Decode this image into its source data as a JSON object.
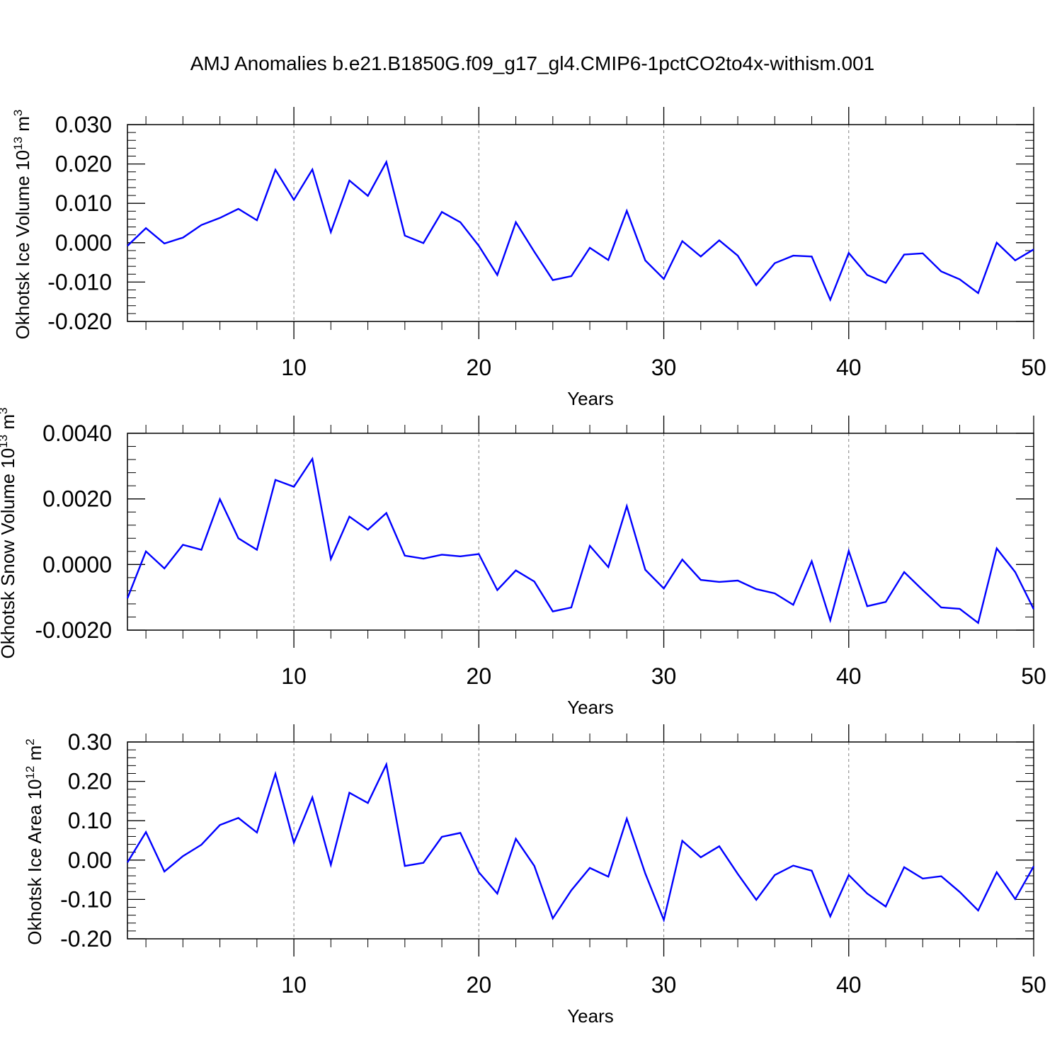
{
  "title": "AMJ Anomalies b.e21.B1850G.f09_g17_gl4.CMIP6-1pctCO2to4x-withism.001",
  "colors": {
    "series": "#0000ff",
    "axis": "#000000",
    "grid": "#808080"
  },
  "chart_data": [
    {
      "type": "line",
      "xlabel": "Years",
      "ylabel": {
        "prefix": "Okhotsk Ice Volume 10",
        "exp": "13",
        "unit": " m",
        "unit_exp": "3"
      },
      "xlim": [
        1,
        50
      ],
      "ylim": [
        -0.02,
        0.03
      ],
      "xticks": [
        "10",
        "20",
        "30",
        "40",
        "50"
      ],
      "yticks": [
        "0.030",
        "0.020",
        "0.010",
        "0.000",
        "-0.010",
        "-0.020"
      ],
      "grid": "dashed vertical at major x ticks",
      "x": [
        1,
        2,
        3,
        4,
        5,
        6,
        7,
        8,
        9,
        10,
        11,
        12,
        13,
        14,
        15,
        16,
        17,
        18,
        19,
        20,
        21,
        22,
        23,
        24,
        25,
        26,
        27,
        28,
        29,
        30,
        31,
        32,
        33,
        34,
        35,
        36,
        37,
        38,
        39,
        40,
        41,
        42,
        43,
        44,
        45,
        46,
        47,
        48,
        49,
        50
      ],
      "values": [
        -0.0008,
        0.0037,
        -0.0002,
        0.0013,
        0.0045,
        0.0063,
        0.0086,
        0.0057,
        0.0185,
        0.0109,
        0.0186,
        0.0027,
        0.0158,
        0.0119,
        0.0205,
        0.0018,
        -0.0001,
        0.0078,
        0.0052,
        -0.0008,
        -0.0082,
        0.0052,
        -0.0023,
        -0.0095,
        -0.0085,
        -0.0013,
        -0.0044,
        0.0081,
        -0.0045,
        -0.0092,
        0.0004,
        -0.0035,
        0.0006,
        -0.0033,
        -0.0108,
        -0.0052,
        -0.0033,
        -0.0035,
        -0.0145,
        -0.0026,
        -0.0082,
        -0.0102,
        -0.003,
        -0.0027,
        -0.0073,
        -0.0093,
        -0.0128,
        0.0,
        -0.0045,
        -0.0017
      ]
    },
    {
      "type": "line",
      "xlabel": "Years",
      "ylabel": {
        "prefix": "Okhotsk Snow Volume 10",
        "exp": "13",
        "unit": " m",
        "unit_exp": "3"
      },
      "xlim": [
        1,
        50
      ],
      "ylim": [
        -0.002,
        0.004
      ],
      "xticks": [
        "10",
        "20",
        "30",
        "40",
        "50"
      ],
      "yticks": [
        "0.0040",
        "0.0020",
        "0.0000",
        "-0.0020"
      ],
      "grid": "dashed vertical at major x ticks",
      "x": [
        1,
        2,
        3,
        4,
        5,
        6,
        7,
        8,
        9,
        10,
        11,
        12,
        13,
        14,
        15,
        16,
        17,
        18,
        19,
        20,
        21,
        22,
        23,
        24,
        25,
        26,
        27,
        28,
        29,
        30,
        31,
        32,
        33,
        34,
        35,
        36,
        37,
        38,
        39,
        40,
        41,
        42,
        43,
        44,
        45,
        46,
        47,
        48,
        49,
        50
      ],
      "values": [
        -0.00103,
        0.0004,
        -0.00012,
        0.0006,
        0.00045,
        0.00199,
        0.0008,
        0.00045,
        0.00258,
        0.00237,
        0.00322,
        0.00017,
        0.00146,
        0.00106,
        0.00157,
        0.00027,
        0.00018,
        0.0003,
        0.00025,
        0.00032,
        -0.00078,
        -0.00018,
        -0.00052,
        -0.00143,
        -0.00131,
        0.00057,
        -8e-05,
        0.00178,
        -0.00016,
        -0.00073,
        0.00015,
        -0.00047,
        -0.00053,
        -0.00049,
        -0.00075,
        -0.00088,
        -0.00123,
        0.0001,
        -0.0017,
        0.00041,
        -0.00127,
        -0.00114,
        -0.00023,
        -0.00078,
        -0.00131,
        -0.00135,
        -0.00178,
        0.00049,
        -0.00023,
        -0.00136
      ]
    },
    {
      "type": "line",
      "xlabel": "Years",
      "ylabel": {
        "prefix": "Okhotsk Ice Area 10",
        "exp": "12",
        "unit": " m",
        "unit_exp": "2"
      },
      "xlim": [
        1,
        50
      ],
      "ylim": [
        -0.2,
        0.3
      ],
      "xticks": [
        "10",
        "20",
        "30",
        "40",
        "50"
      ],
      "yticks": [
        "0.30",
        "0.20",
        "0.10",
        "0.00",
        "-0.10",
        "-0.20"
      ],
      "grid": "dashed vertical at major x ticks",
      "x": [
        1,
        2,
        3,
        4,
        5,
        6,
        7,
        8,
        9,
        10,
        11,
        12,
        13,
        14,
        15,
        16,
        17,
        18,
        19,
        20,
        21,
        22,
        23,
        24,
        25,
        26,
        27,
        28,
        29,
        30,
        31,
        32,
        33,
        34,
        35,
        36,
        37,
        38,
        39,
        40,
        41,
        42,
        43,
        44,
        45,
        46,
        47,
        48,
        49,
        50
      ],
      "values": [
        -0.006,
        0.071,
        -0.029,
        0.01,
        0.039,
        0.089,
        0.107,
        0.07,
        0.219,
        0.044,
        0.159,
        -0.012,
        0.171,
        0.145,
        0.243,
        -0.015,
        -0.007,
        0.059,
        0.069,
        -0.031,
        -0.085,
        0.054,
        -0.015,
        -0.148,
        -0.077,
        -0.02,
        -0.042,
        0.105,
        -0.034,
        -0.152,
        0.049,
        0.007,
        0.035,
        -0.035,
        -0.101,
        -0.038,
        -0.014,
        -0.027,
        -0.143,
        -0.038,
        -0.085,
        -0.118,
        -0.018,
        -0.047,
        -0.041,
        -0.081,
        -0.128,
        -0.031,
        -0.099,
        -0.016
      ]
    }
  ]
}
